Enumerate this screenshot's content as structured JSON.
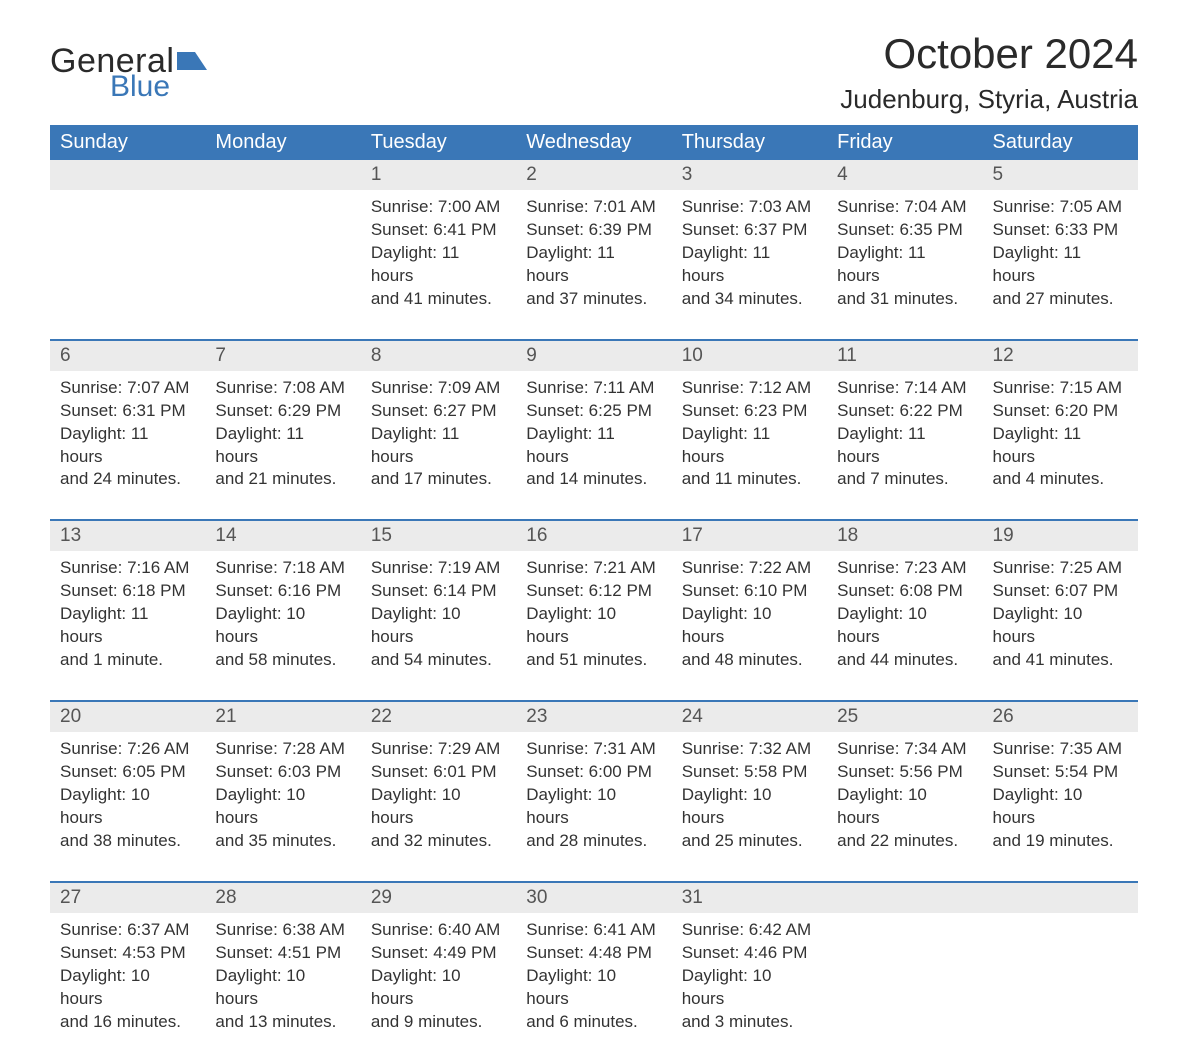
{
  "logo": {
    "word1": "General",
    "word2": "Blue",
    "icon_color": "#3a77b7",
    "text_color": "#2a2a2a"
  },
  "title": "October 2024",
  "location": "Judenburg, Styria, Austria",
  "colors": {
    "header_bg": "#3a77b7",
    "header_text": "#ffffff",
    "daynum_bg": "#ebebeb",
    "daynum_text": "#555555",
    "body_text": "#333333",
    "row_border": "#3a77b7",
    "page_bg": "#ffffff"
  },
  "typography": {
    "title_fontsize": 42,
    "location_fontsize": 26,
    "weekday_fontsize": 20,
    "daynum_fontsize": 19,
    "detail_fontsize": 17,
    "font_family": "Arial"
  },
  "weekdays": [
    "Sunday",
    "Monday",
    "Tuesday",
    "Wednesday",
    "Thursday",
    "Friday",
    "Saturday"
  ],
  "weeks": [
    {
      "days": [
        null,
        null,
        {
          "num": "1",
          "sunrise": "Sunrise: 7:00 AM",
          "sunset": "Sunset: 6:41 PM",
          "daylight1": "Daylight: 11 hours",
          "daylight2": "and 41 minutes."
        },
        {
          "num": "2",
          "sunrise": "Sunrise: 7:01 AM",
          "sunset": "Sunset: 6:39 PM",
          "daylight1": "Daylight: 11 hours",
          "daylight2": "and 37 minutes."
        },
        {
          "num": "3",
          "sunrise": "Sunrise: 7:03 AM",
          "sunset": "Sunset: 6:37 PM",
          "daylight1": "Daylight: 11 hours",
          "daylight2": "and 34 minutes."
        },
        {
          "num": "4",
          "sunrise": "Sunrise: 7:04 AM",
          "sunset": "Sunset: 6:35 PM",
          "daylight1": "Daylight: 11 hours",
          "daylight2": "and 31 minutes."
        },
        {
          "num": "5",
          "sunrise": "Sunrise: 7:05 AM",
          "sunset": "Sunset: 6:33 PM",
          "daylight1": "Daylight: 11 hours",
          "daylight2": "and 27 minutes."
        }
      ]
    },
    {
      "days": [
        {
          "num": "6",
          "sunrise": "Sunrise: 7:07 AM",
          "sunset": "Sunset: 6:31 PM",
          "daylight1": "Daylight: 11 hours",
          "daylight2": "and 24 minutes."
        },
        {
          "num": "7",
          "sunrise": "Sunrise: 7:08 AM",
          "sunset": "Sunset: 6:29 PM",
          "daylight1": "Daylight: 11 hours",
          "daylight2": "and 21 minutes."
        },
        {
          "num": "8",
          "sunrise": "Sunrise: 7:09 AM",
          "sunset": "Sunset: 6:27 PM",
          "daylight1": "Daylight: 11 hours",
          "daylight2": "and 17 minutes."
        },
        {
          "num": "9",
          "sunrise": "Sunrise: 7:11 AM",
          "sunset": "Sunset: 6:25 PM",
          "daylight1": "Daylight: 11 hours",
          "daylight2": "and 14 minutes."
        },
        {
          "num": "10",
          "sunrise": "Sunrise: 7:12 AM",
          "sunset": "Sunset: 6:23 PM",
          "daylight1": "Daylight: 11 hours",
          "daylight2": "and 11 minutes."
        },
        {
          "num": "11",
          "sunrise": "Sunrise: 7:14 AM",
          "sunset": "Sunset: 6:22 PM",
          "daylight1": "Daylight: 11 hours",
          "daylight2": "and 7 minutes."
        },
        {
          "num": "12",
          "sunrise": "Sunrise: 7:15 AM",
          "sunset": "Sunset: 6:20 PM",
          "daylight1": "Daylight: 11 hours",
          "daylight2": "and 4 minutes."
        }
      ]
    },
    {
      "days": [
        {
          "num": "13",
          "sunrise": "Sunrise: 7:16 AM",
          "sunset": "Sunset: 6:18 PM",
          "daylight1": "Daylight: 11 hours",
          "daylight2": "and 1 minute."
        },
        {
          "num": "14",
          "sunrise": "Sunrise: 7:18 AM",
          "sunset": "Sunset: 6:16 PM",
          "daylight1": "Daylight: 10 hours",
          "daylight2": "and 58 minutes."
        },
        {
          "num": "15",
          "sunrise": "Sunrise: 7:19 AM",
          "sunset": "Sunset: 6:14 PM",
          "daylight1": "Daylight: 10 hours",
          "daylight2": "and 54 minutes."
        },
        {
          "num": "16",
          "sunrise": "Sunrise: 7:21 AM",
          "sunset": "Sunset: 6:12 PM",
          "daylight1": "Daylight: 10 hours",
          "daylight2": "and 51 minutes."
        },
        {
          "num": "17",
          "sunrise": "Sunrise: 7:22 AM",
          "sunset": "Sunset: 6:10 PM",
          "daylight1": "Daylight: 10 hours",
          "daylight2": "and 48 minutes."
        },
        {
          "num": "18",
          "sunrise": "Sunrise: 7:23 AM",
          "sunset": "Sunset: 6:08 PM",
          "daylight1": "Daylight: 10 hours",
          "daylight2": "and 44 minutes."
        },
        {
          "num": "19",
          "sunrise": "Sunrise: 7:25 AM",
          "sunset": "Sunset: 6:07 PM",
          "daylight1": "Daylight: 10 hours",
          "daylight2": "and 41 minutes."
        }
      ]
    },
    {
      "days": [
        {
          "num": "20",
          "sunrise": "Sunrise: 7:26 AM",
          "sunset": "Sunset: 6:05 PM",
          "daylight1": "Daylight: 10 hours",
          "daylight2": "and 38 minutes."
        },
        {
          "num": "21",
          "sunrise": "Sunrise: 7:28 AM",
          "sunset": "Sunset: 6:03 PM",
          "daylight1": "Daylight: 10 hours",
          "daylight2": "and 35 minutes."
        },
        {
          "num": "22",
          "sunrise": "Sunrise: 7:29 AM",
          "sunset": "Sunset: 6:01 PM",
          "daylight1": "Daylight: 10 hours",
          "daylight2": "and 32 minutes."
        },
        {
          "num": "23",
          "sunrise": "Sunrise: 7:31 AM",
          "sunset": "Sunset: 6:00 PM",
          "daylight1": "Daylight: 10 hours",
          "daylight2": "and 28 minutes."
        },
        {
          "num": "24",
          "sunrise": "Sunrise: 7:32 AM",
          "sunset": "Sunset: 5:58 PM",
          "daylight1": "Daylight: 10 hours",
          "daylight2": "and 25 minutes."
        },
        {
          "num": "25",
          "sunrise": "Sunrise: 7:34 AM",
          "sunset": "Sunset: 5:56 PM",
          "daylight1": "Daylight: 10 hours",
          "daylight2": "and 22 minutes."
        },
        {
          "num": "26",
          "sunrise": "Sunrise: 7:35 AM",
          "sunset": "Sunset: 5:54 PM",
          "daylight1": "Daylight: 10 hours",
          "daylight2": "and 19 minutes."
        }
      ]
    },
    {
      "days": [
        {
          "num": "27",
          "sunrise": "Sunrise: 6:37 AM",
          "sunset": "Sunset: 4:53 PM",
          "daylight1": "Daylight: 10 hours",
          "daylight2": "and 16 minutes."
        },
        {
          "num": "28",
          "sunrise": "Sunrise: 6:38 AM",
          "sunset": "Sunset: 4:51 PM",
          "daylight1": "Daylight: 10 hours",
          "daylight2": "and 13 minutes."
        },
        {
          "num": "29",
          "sunrise": "Sunrise: 6:40 AM",
          "sunset": "Sunset: 4:49 PM",
          "daylight1": "Daylight: 10 hours",
          "daylight2": "and 9 minutes."
        },
        {
          "num": "30",
          "sunrise": "Sunrise: 6:41 AM",
          "sunset": "Sunset: 4:48 PM",
          "daylight1": "Daylight: 10 hours",
          "daylight2": "and 6 minutes."
        },
        {
          "num": "31",
          "sunrise": "Sunrise: 6:42 AM",
          "sunset": "Sunset: 4:46 PM",
          "daylight1": "Daylight: 10 hours",
          "daylight2": "and 3 minutes."
        },
        null,
        null
      ]
    }
  ]
}
